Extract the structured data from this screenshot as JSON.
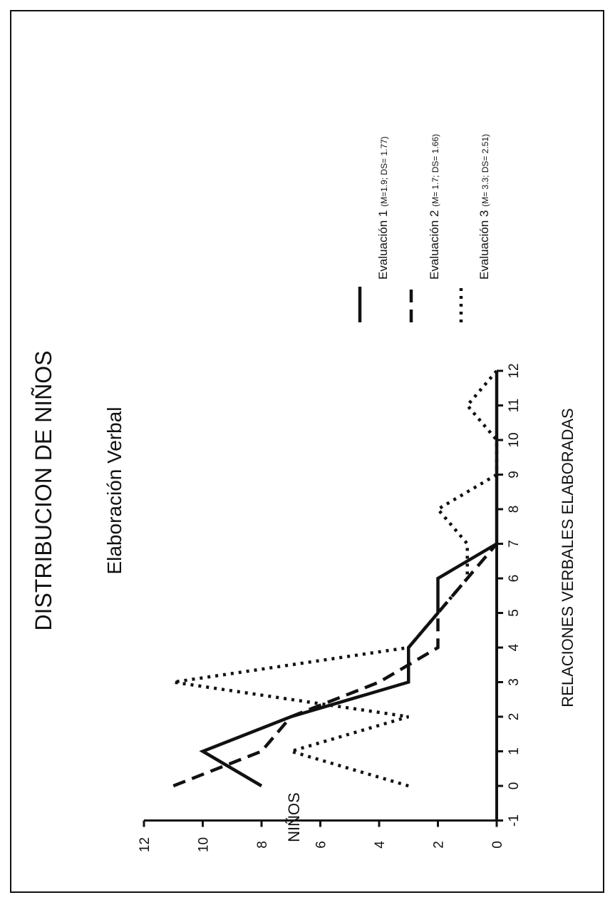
{
  "chart_data": {
    "type": "line",
    "title": "DISTRIBUCION DE NIÑOS",
    "subtitle": "Elaboración Verbal",
    "xlabel": "RELACIONES VERBALES ELABORADAS",
    "ylabel": "NIÑOS",
    "xlim": [
      -1,
      12
    ],
    "ylim": [
      0,
      12
    ],
    "x_ticks": [
      "-1",
      "0",
      "1",
      "2",
      "3",
      "4",
      "5",
      "6",
      "7",
      "8",
      "9",
      "10",
      "11",
      "12"
    ],
    "y_ticks": [
      "0",
      "2",
      "4",
      "6",
      "8",
      "10",
      "12"
    ],
    "orientation": "rotated 90° counter-clockwise on the page",
    "grid": false,
    "legend_position": "right",
    "series": [
      {
        "name": "Evaluación 1",
        "stats": "(M=1.9; DS= 1.77)",
        "style": "solid",
        "points": [
          [
            0,
            8
          ],
          [
            1,
            10
          ],
          [
            2,
            7
          ],
          [
            3,
            3
          ],
          [
            4,
            3
          ],
          [
            5,
            2
          ],
          [
            6,
            2
          ],
          [
            7,
            0
          ],
          [
            8,
            0
          ],
          [
            9,
            0
          ],
          [
            10,
            0
          ],
          [
            11,
            0
          ],
          [
            12,
            0
          ]
        ]
      },
      {
        "name": "Evaluación 2",
        "stats": "(M= 1.7; DS= 1.66)",
        "style": "dashed",
        "points": [
          [
            0,
            11
          ],
          [
            1,
            8
          ],
          [
            2,
            7
          ],
          [
            3,
            4
          ],
          [
            4,
            2
          ],
          [
            5,
            2
          ],
          [
            6,
            1
          ],
          [
            7,
            0
          ]
        ]
      },
      {
        "name": "Evaluación 3",
        "stats": "(M= 3.3; DS= 2.51)",
        "style": "dotted",
        "points": [
          [
            0,
            3
          ],
          [
            1,
            7
          ],
          [
            2,
            3
          ],
          [
            3,
            11
          ],
          [
            4,
            3
          ],
          [
            5,
            2
          ],
          [
            6,
            1
          ],
          [
            7,
            1
          ],
          [
            8,
            2
          ],
          [
            9,
            0
          ],
          [
            10,
            0
          ],
          [
            11,
            1
          ],
          [
            12,
            0
          ]
        ]
      }
    ]
  },
  "colors": {
    "ink": "#111111",
    "background": "#ffffff"
  }
}
